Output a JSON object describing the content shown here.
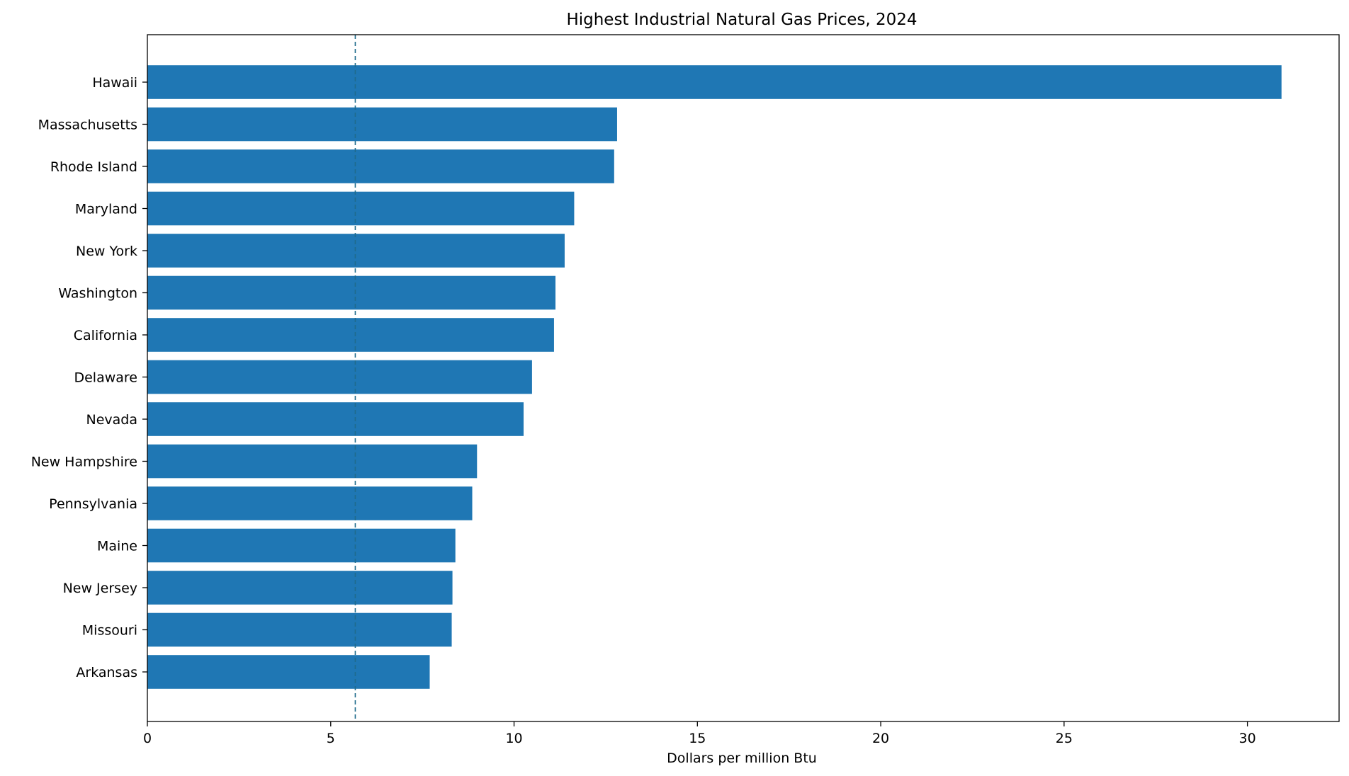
{
  "chart_data": {
    "type": "bar",
    "orientation": "horizontal",
    "title": "Highest Industrial Natural Gas Prices, 2024",
    "xlabel": "Dollars per million Btu",
    "ylabel": "",
    "xlim": [
      0,
      32.5
    ],
    "xticks": [
      "0",
      "5",
      "10",
      "15",
      "20",
      "25",
      "30"
    ],
    "categories": [
      "Hawaii",
      "Massachusetts",
      "Rhode Island",
      "Maryland",
      "New York",
      "Washington",
      "California",
      "Delaware",
      "Nevada",
      "New Hampshire",
      "Pennsylvania",
      "Maine",
      "New Jersey",
      "Missouri",
      "Arkansas"
    ],
    "values": [
      30.93,
      12.81,
      12.73,
      11.64,
      11.38,
      11.13,
      11.09,
      10.49,
      10.26,
      8.99,
      8.86,
      8.4,
      8.32,
      8.3,
      7.7
    ],
    "reference_line": {
      "x": 5.67,
      "style": "dashed",
      "color": "#1f6b8c"
    },
    "bar_color": "#1f77b4",
    "grid": false,
    "legend": "none"
  }
}
